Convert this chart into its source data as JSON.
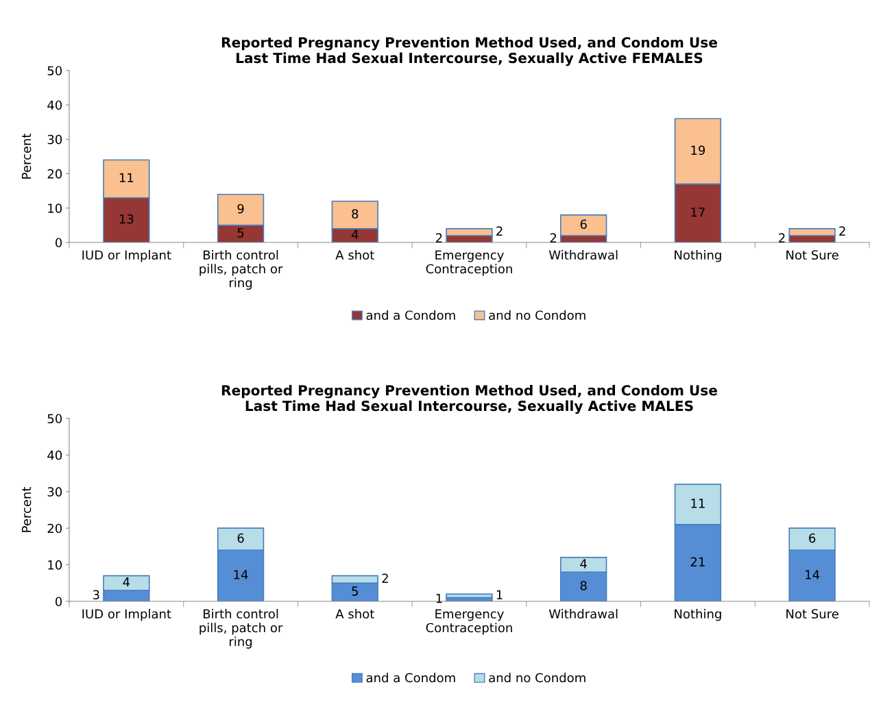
{
  "chart_data": [
    {
      "type": "bar",
      "title": "Reported Pregnancy Prevention Method Used, and Condom Use\nLast Time Had Sexual Intercourse, Sexually Active FEMALES",
      "ylabel": "Percent",
      "categories": [
        "IUD or Implant",
        "Birth control\npills, patch or\nring",
        "A shot",
        "Emergency\nContraception",
        "Withdrawal",
        "Nothing",
        "Not Sure"
      ],
      "stacked": true,
      "ylim": [
        0,
        50
      ],
      "yticks": [
        0,
        10,
        20,
        30,
        40,
        50
      ],
      "grid": false,
      "legend": "bottom",
      "data_labels": true,
      "series": [
        {
          "name": "and a Condom",
          "color": "#953735",
          "values": [
            13,
            5,
            4,
            2,
            2,
            17,
            2
          ]
        },
        {
          "name": "and no Condom",
          "color": "#fac090",
          "values": [
            11,
            9,
            8,
            2,
            6,
            19,
            2
          ]
        }
      ]
    },
    {
      "type": "bar",
      "title": "Reported Pregnancy Prevention Method Used, and Condom Use\nLast Time Had Sexual Intercourse, Sexually Active MALES",
      "ylabel": "Percent",
      "categories": [
        "IUD or Implant",
        "Birth control\npills, patch or\nring",
        "A shot",
        "Emergency\nContraception",
        "Withdrawal",
        "Nothing",
        "Not Sure"
      ],
      "stacked": true,
      "ylim": [
        0,
        50
      ],
      "yticks": [
        0,
        10,
        20,
        30,
        40,
        50
      ],
      "grid": false,
      "legend": "bottom",
      "data_labels": true,
      "series": [
        {
          "name": "and a Condom",
          "color": "#558ed5",
          "values": [
            3,
            14,
            5,
            1,
            8,
            21,
            14
          ]
        },
        {
          "name": "and no Condom",
          "color": "#b7dee8",
          "values": [
            4,
            6,
            2,
            1,
            4,
            11,
            6
          ]
        }
      ]
    }
  ]
}
